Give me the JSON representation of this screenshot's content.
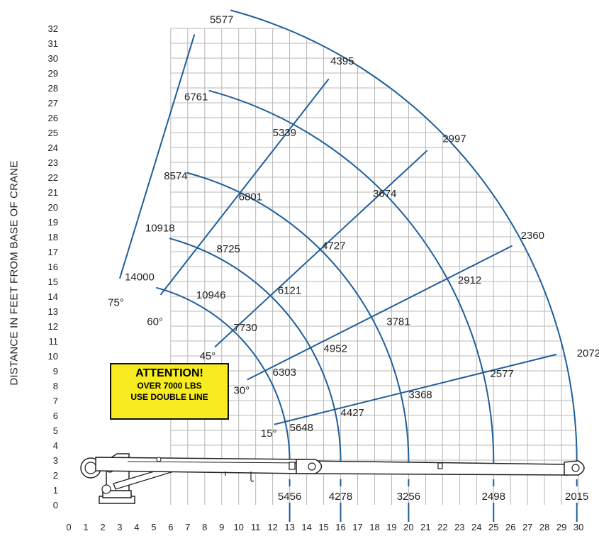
{
  "chart_data": {
    "type": "line",
    "title": "",
    "ylabel": "DISTANCE IN FEET FROM BASE OF CRANE",
    "xlabel": "",
    "x_ticks": [
      "0",
      "1",
      "2",
      "3",
      "4",
      "5",
      "6",
      "7",
      "8",
      "9",
      "10",
      "11",
      "12",
      "13",
      "14",
      "15",
      "16",
      "17",
      "18",
      "19",
      "20",
      "21",
      "22",
      "23",
      "24",
      "25",
      "26",
      "27",
      "28",
      "29",
      "30"
    ],
    "y_ticks": [
      "0",
      "1",
      "2",
      "3",
      "4",
      "5",
      "6",
      "7",
      "8",
      "9",
      "10",
      "11",
      "12",
      "13",
      "14",
      "15",
      "16",
      "17",
      "18",
      "19",
      "20",
      "21",
      "22",
      "23",
      "24",
      "25",
      "26",
      "27",
      "28",
      "29",
      "30",
      "31",
      "32"
    ],
    "xlim": [
      0,
      30
    ],
    "ylim": [
      0,
      32
    ],
    "pivot": [
      2.4,
      2.9
    ],
    "boom_angles": [
      {
        "label": "75°",
        "angle": 75
      },
      {
        "label": "60°",
        "angle": 60
      },
      {
        "label": "45°",
        "angle": 45
      },
      {
        "label": "30°",
        "angle": 30
      },
      {
        "label": "15°",
        "angle": 15
      }
    ],
    "boom_lines": [
      {
        "label": "75°",
        "start": [
          3.0,
          15.2
        ],
        "end": [
          7.4,
          31.6
        ]
      },
      {
        "label": "60°",
        "start": [
          5.4,
          14.1
        ],
        "end": [
          15.3,
          28.6
        ]
      },
      {
        "label": "45°",
        "start": [
          8.6,
          10.6
        ],
        "end": [
          21.1,
          23.8
        ]
      },
      {
        "label": "30°",
        "start": [
          10.5,
          8.4
        ],
        "end": [
          26.1,
          17.4
        ]
      },
      {
        "label": "15°",
        "start": [
          12.1,
          5.4
        ],
        "end": [
          28.7,
          10.1
        ]
      }
    ],
    "extension_radii": [
      {
        "name": "boom-extension-1",
        "x_at_ground": 13.0
      },
      {
        "name": "boom-extension-2",
        "x_at_ground": 16.0
      },
      {
        "name": "boom-extension-3",
        "x_at_ground": 20.0
      },
      {
        "name": "boom-extension-4",
        "x_at_ground": 25.0
      },
      {
        "name": "boom-extension-5",
        "x_at_ground": 29.9
      }
    ],
    "capacity_labels": [
      {
        "value": "14000",
        "x": 3.3,
        "y": 15.3
      },
      {
        "value": "10918",
        "x": 4.5,
        "y": 18.6
      },
      {
        "value": "8574",
        "x": 5.6,
        "y": 22.1
      },
      {
        "value": "6761",
        "x": 6.8,
        "y": 27.4
      },
      {
        "value": "5577",
        "x": 8.3,
        "y": 32.6
      },
      {
        "value": "10946",
        "x": 7.5,
        "y": 14.1
      },
      {
        "value": "8725",
        "x": 8.7,
        "y": 17.2
      },
      {
        "value": "6801",
        "x": 10.0,
        "y": 20.7
      },
      {
        "value": "5339",
        "x": 12.0,
        "y": 25.0
      },
      {
        "value": "4395",
        "x": 15.4,
        "y": 29.8
      },
      {
        "value": "7730",
        "x": 9.7,
        "y": 11.9
      },
      {
        "value": "6121",
        "x": 12.3,
        "y": 14.4
      },
      {
        "value": "4727",
        "x": 14.9,
        "y": 17.4
      },
      {
        "value": "3674",
        "x": 17.9,
        "y": 20.9
      },
      {
        "value": "2997",
        "x": 22.0,
        "y": 24.6
      },
      {
        "value": "6303",
        "x": 12.0,
        "y": 8.9
      },
      {
        "value": "4952",
        "x": 15.0,
        "y": 10.5
      },
      {
        "value": "3781",
        "x": 18.7,
        "y": 12.3
      },
      {
        "value": "2912",
        "x": 22.9,
        "y": 15.1
      },
      {
        "value": "2360",
        "x": 26.6,
        "y": 18.1
      },
      {
        "value": "5648",
        "x": 13.0,
        "y": 5.2
      },
      {
        "value": "4427",
        "x": 16.0,
        "y": 6.2
      },
      {
        "value": "3368",
        "x": 20.0,
        "y": 7.4
      },
      {
        "value": "2577",
        "x": 24.8,
        "y": 8.8
      },
      {
        "value": "2072",
        "x": 29.9,
        "y": 10.2
      }
    ],
    "angle_label_positions": [
      {
        "label": "75°",
        "x": 2.3,
        "y": 13.6
      },
      {
        "label": "60°",
        "x": 4.6,
        "y": 12.3
      },
      {
        "label": "45°",
        "x": 7.7,
        "y": 10.0
      },
      {
        "label": "30°",
        "x": 9.7,
        "y": 7.7
      },
      {
        "label": "15°",
        "x": 11.3,
        "y": 4.8
      }
    ],
    "ground_capacities": [
      {
        "value": "5456",
        "x": 13.0
      },
      {
        "value": "4278",
        "x": 16.0
      },
      {
        "value": "3256",
        "x": 20.0
      },
      {
        "value": "2498",
        "x": 25.0
      },
      {
        "value": "2015",
        "x": 29.9
      }
    ],
    "grid": true
  },
  "notice": {
    "title": "ATTENTION!",
    "line1": "OVER 7000 LBS",
    "line2": "USE DOUBLE LINE"
  }
}
